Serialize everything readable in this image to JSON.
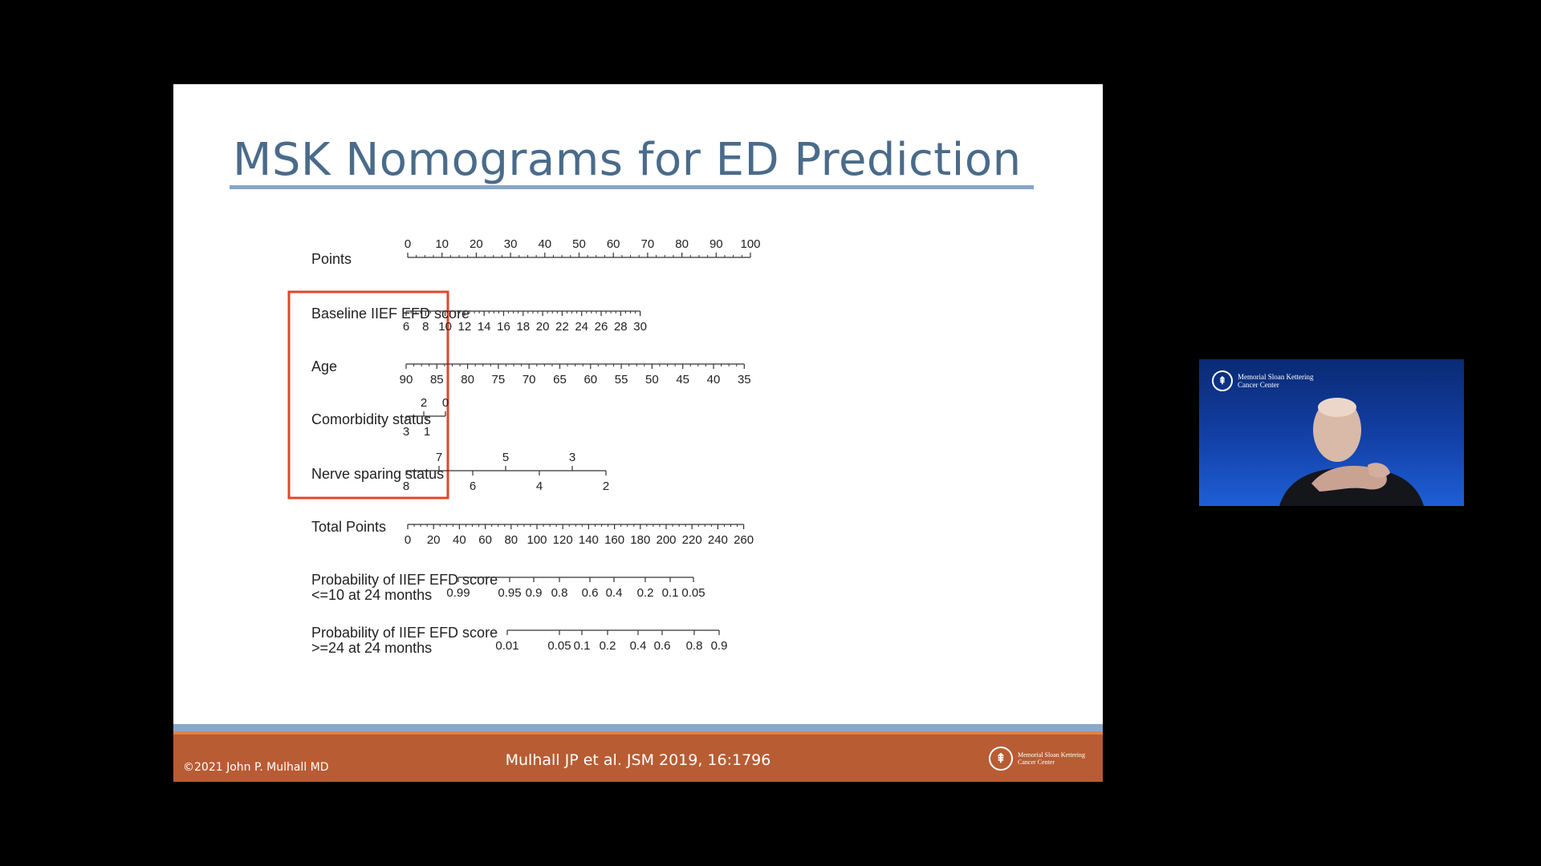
{
  "slide": {
    "title": "MSK Nomograms for ED Prediction",
    "footer": {
      "copyright": "©2021 John P. Mulhall MD",
      "citation": "Mulhall JP et al. JSM 2019, 16:1796",
      "logo_text": "Memorial Sloan Kettering Cancer Center"
    }
  },
  "nomogram": {
    "rows": [
      {
        "label": "Points",
        "ticks_above": [
          "0",
          "10",
          "20",
          "30",
          "40",
          "50",
          "60",
          "70",
          "80",
          "90",
          "100"
        ],
        "ticks_below": []
      },
      {
        "label": "Baseline IIEF EFD score",
        "ticks_above": [],
        "ticks_below": [
          "6",
          "8",
          "10",
          "12",
          "14",
          "16",
          "18",
          "20",
          "22",
          "24",
          "26",
          "28",
          "30"
        ]
      },
      {
        "label": "Age",
        "ticks_above": [],
        "ticks_below": [
          "90",
          "85",
          "80",
          "75",
          "70",
          "65",
          "60",
          "55",
          "50",
          "45",
          "40",
          "35"
        ]
      },
      {
        "label": "Comorbidity status",
        "ticks_above": [
          "2",
          "0"
        ],
        "ticks_below": [
          "3",
          "1"
        ]
      },
      {
        "label": "Nerve sparing status",
        "ticks_above": [
          "7",
          "5",
          "3"
        ],
        "ticks_below": [
          "8",
          "6",
          "4",
          "2"
        ]
      },
      {
        "label": "Total Points",
        "ticks_above": [],
        "ticks_below": [
          "0",
          "20",
          "40",
          "60",
          "80",
          "100",
          "120",
          "140",
          "160",
          "180",
          "200",
          "220",
          "240",
          "260"
        ]
      },
      {
        "label_line1": "Probability of IIEF EFD score",
        "label_line2": "<=10  at  24 months",
        "ticks_above": [],
        "ticks_below": [
          "0.99",
          "0.95",
          "0.9",
          "0.8",
          "0.6",
          "0.4",
          "0.2",
          "0.1",
          "0.05"
        ]
      },
      {
        "label_line1": "Probability of IIEF EFD score",
        "label_line2": ">=24 at 24 months",
        "ticks_above": [],
        "ticks_below": [
          "0.01",
          "0.05",
          "0.1",
          "0.2",
          "0.4",
          "0.6",
          "0.8",
          "0.9"
        ]
      }
    ],
    "highlight_color": "#e2452b"
  },
  "video": {
    "logo_text": "Memorial Sloan Kettering Cancer Center"
  }
}
